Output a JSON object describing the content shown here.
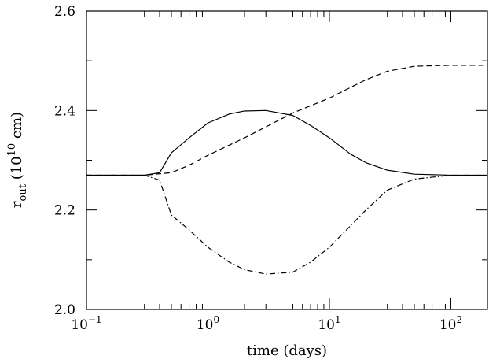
{
  "chart_data": {
    "type": "line",
    "title": "",
    "xlabel": "time (days)",
    "ylabel": {
      "base": "r",
      "sub": "out",
      "open": " (10",
      "sup": "10",
      "close": " cm)"
    },
    "x_scale": "log",
    "xlim": [
      0.1,
      200
    ],
    "ylim": [
      2.0,
      2.6
    ],
    "x_ticks": [
      {
        "value": 0.1,
        "base": "10",
        "exp": "−1"
      },
      {
        "value": 1,
        "base": "10",
        "exp": "0"
      },
      {
        "value": 10,
        "base": "10",
        "exp": "1"
      },
      {
        "value": 100,
        "base": "10",
        "exp": "2"
      }
    ],
    "y_ticks": [
      {
        "value": 2.0,
        "label": "2.0"
      },
      {
        "value": 2.2,
        "label": "2.2"
      },
      {
        "value": 2.4,
        "label": "2.4"
      },
      {
        "value": 2.6,
        "label": "2.6"
      }
    ],
    "grid": false,
    "legend": "none",
    "series": [
      {
        "style": "solid",
        "points": [
          [
            0.1,
            2.27
          ],
          [
            0.3,
            2.27
          ],
          [
            0.4,
            2.275
          ],
          [
            0.5,
            2.315
          ],
          [
            0.7,
            2.345
          ],
          [
            1.0,
            2.375
          ],
          [
            1.5,
            2.393
          ],
          [
            2.0,
            2.399
          ],
          [
            3.0,
            2.4
          ],
          [
            5.0,
            2.39
          ],
          [
            7.0,
            2.37
          ],
          [
            10.0,
            2.345
          ],
          [
            15.0,
            2.312
          ],
          [
            20.0,
            2.295
          ],
          [
            30.0,
            2.28
          ],
          [
            50.0,
            2.272
          ],
          [
            100.0,
            2.27
          ],
          [
            200.0,
            2.27
          ]
        ]
      },
      {
        "style": "dashed",
        "points": [
          [
            0.1,
            2.27
          ],
          [
            0.3,
            2.27
          ],
          [
            0.5,
            2.275
          ],
          [
            0.7,
            2.29
          ],
          [
            1.0,
            2.31
          ],
          [
            2.0,
            2.345
          ],
          [
            5.0,
            2.395
          ],
          [
            10.0,
            2.425
          ],
          [
            20.0,
            2.462
          ],
          [
            30.0,
            2.479
          ],
          [
            50.0,
            2.489
          ],
          [
            100.0,
            2.491
          ],
          [
            200.0,
            2.491
          ]
        ]
      },
      {
        "style": "dashdot",
        "points": [
          [
            0.1,
            2.27
          ],
          [
            0.3,
            2.27
          ],
          [
            0.4,
            2.26
          ],
          [
            0.5,
            2.19
          ],
          [
            0.7,
            2.16
          ],
          [
            1.0,
            2.125
          ],
          [
            1.5,
            2.095
          ],
          [
            2.0,
            2.08
          ],
          [
            3.0,
            2.071
          ],
          [
            5.0,
            2.075
          ],
          [
            7.0,
            2.095
          ],
          [
            10.0,
            2.125
          ],
          [
            20.0,
            2.2
          ],
          [
            30.0,
            2.24
          ],
          [
            50.0,
            2.262
          ],
          [
            100.0,
            2.27
          ],
          [
            200.0,
            2.27
          ]
        ]
      }
    ]
  }
}
